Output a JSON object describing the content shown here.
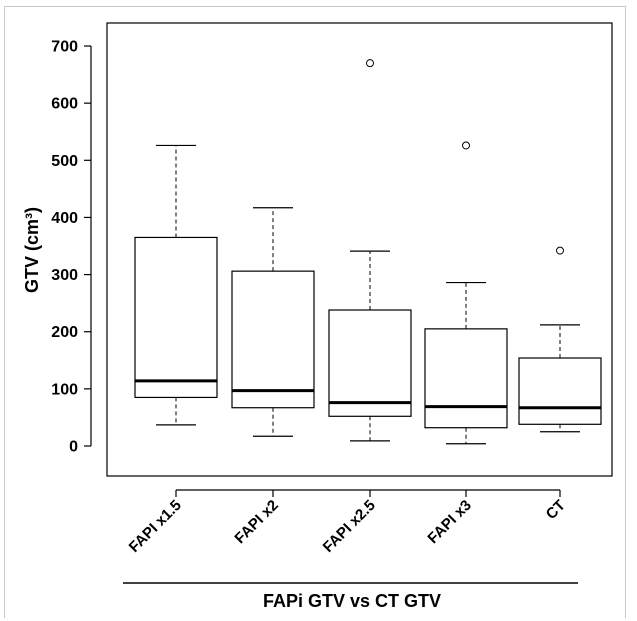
{
  "chart_data": {
    "type": "boxplot",
    "ylabel": "GTV (cm³)",
    "xlabel": "FAPi GTV vs CT GTV",
    "yticks": [
      0,
      100,
      200,
      300,
      400,
      500,
      600,
      700
    ],
    "ylim": [
      -35,
      725
    ],
    "categories": [
      "FAPI x1.5",
      "FAPI x2",
      "FAPI x2.5",
      "FAPI x3",
      "CT"
    ],
    "boxes": [
      {
        "whisker_low": 37,
        "q1": 85,
        "median": 114,
        "q3": 365,
        "whisker_high": 526,
        "outliers": []
      },
      {
        "whisker_low": 17,
        "q1": 67,
        "median": 97,
        "q3": 306,
        "whisker_high": 417,
        "outliers": []
      },
      {
        "whisker_low": 9,
        "q1": 52,
        "median": 76,
        "q3": 238,
        "whisker_high": 341,
        "outliers": [
          670
        ]
      },
      {
        "whisker_low": 4,
        "q1": 32,
        "median": 69,
        "q3": 205,
        "whisker_high": 286,
        "outliers": [
          526
        ]
      },
      {
        "whisker_low": 25,
        "q1": 38,
        "median": 67,
        "q3": 154,
        "whisker_high": 212,
        "outliers": [
          342
        ]
      }
    ],
    "grid": false,
    "legend": "none"
  }
}
